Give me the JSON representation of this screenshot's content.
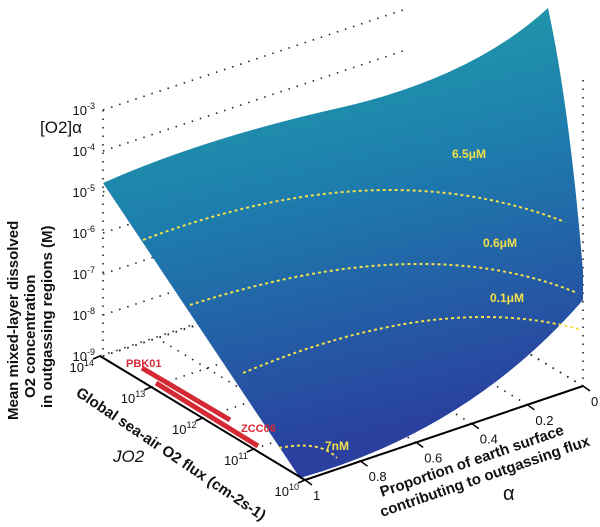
{
  "chart_data": {
    "type": "surface",
    "zlabel_symbol": "[O2]α",
    "zlabel": "Mean mixed-layer dissolved O2 concentration in outgassing regions (M)",
    "zlabel_lines": [
      "Mean mixed-layer dissolved",
      "O2 concentration",
      "in outgassing regions (M)"
    ],
    "zscale": "log",
    "zticks": [
      "10-3",
      "10-4",
      "10-5",
      "10-6",
      "10-7",
      "10-8",
      "10-9"
    ],
    "zlim": [
      1e-09,
      0.001
    ],
    "ylabel": "Global sea-air O2 flux (cm-2s-1)",
    "ylabel_symbol": "JO2",
    "yscale": "log",
    "yticks": [
      "1014",
      "1013",
      "1012",
      "1011",
      "1010"
    ],
    "ylim": [
      10000000000.0,
      100000000000000.0
    ],
    "xlabel_lines": [
      "Proportion of earth surface",
      "contributing to outgassing flux"
    ],
    "xlabel_symbol": "α",
    "xticks": [
      "0",
      "0.2",
      "0.4",
      "0.6",
      "0.8",
      "1"
    ],
    "xlim": [
      0,
      1
    ],
    "grid": true,
    "contours": [
      {
        "label": "6.5μM",
        "value": 6.5e-06
      },
      {
        "label": "0.6μM",
        "value": 6e-07
      },
      {
        "label": "0.1μM",
        "value": 1e-07
      },
      {
        "label": "7nM",
        "value": 7e-09
      }
    ],
    "flux_ranges": [
      {
        "label": "PBK01",
        "color": "#d42a36"
      },
      {
        "label": "ZCC06",
        "color": "#d42a36"
      }
    ],
    "colors": {
      "surface_high": "#23a8a6",
      "surface_low": "#2a3f9e",
      "contour": "#f2e04a"
    }
  }
}
